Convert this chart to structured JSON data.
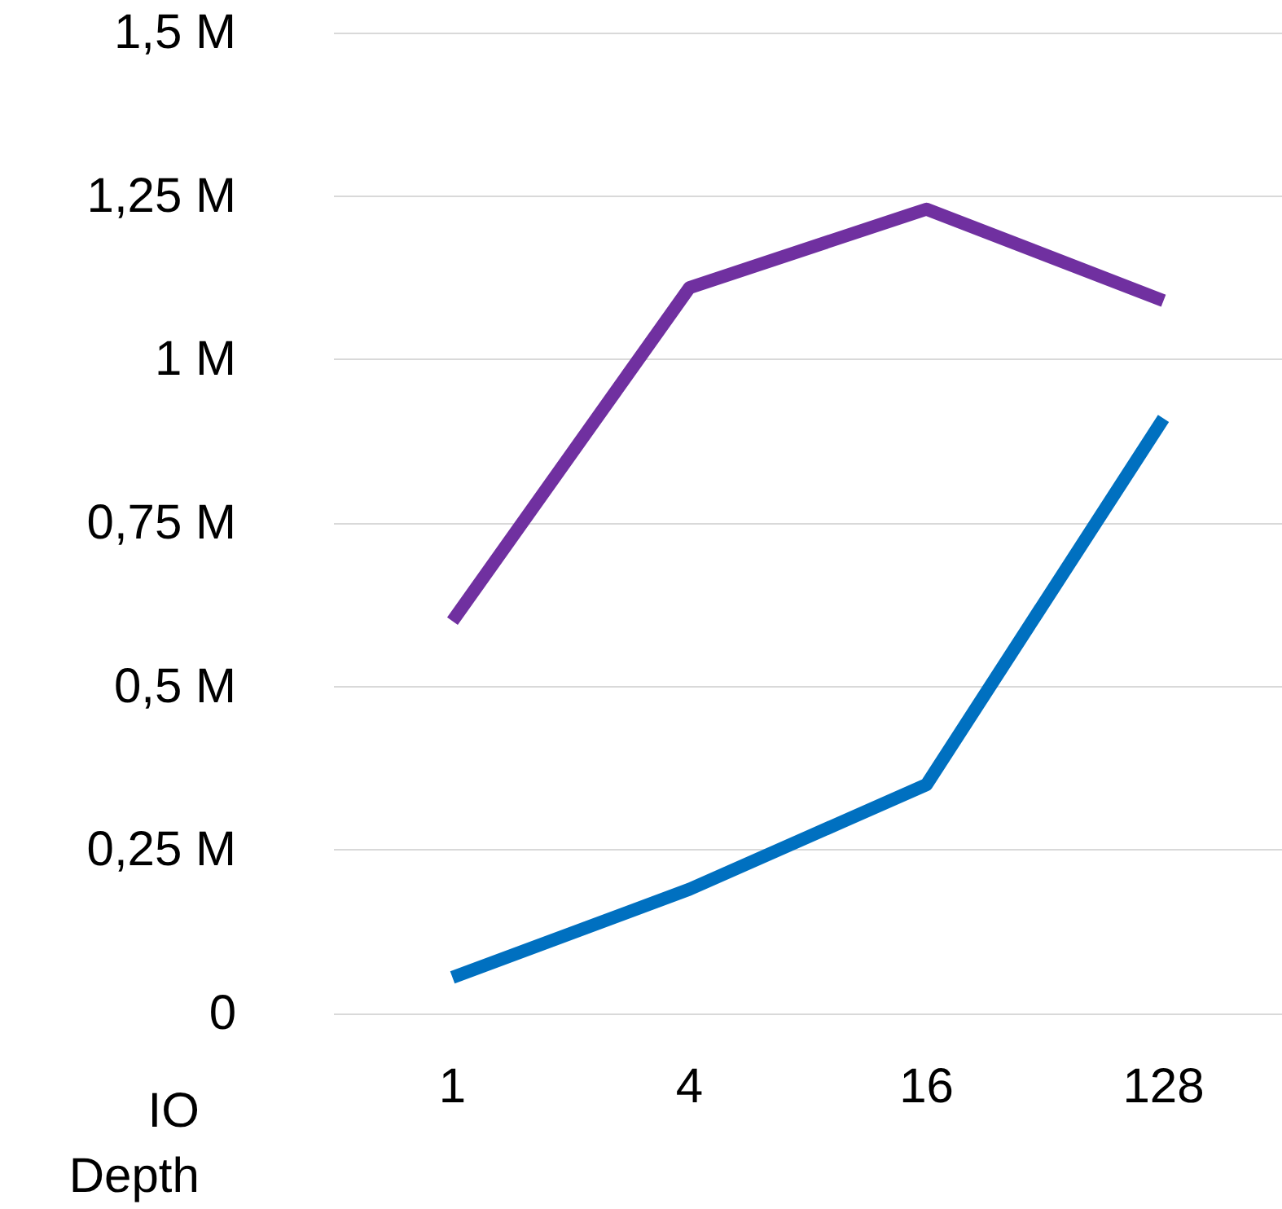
{
  "chart_data": {
    "type": "line",
    "xlabel": "IO\nDepth",
    "categories": [
      "1",
      "4",
      "16",
      "128"
    ],
    "series": [
      {
        "color": "#7030a0",
        "values": [
          0.6,
          1.11,
          1.23,
          1.09
        ]
      },
      {
        "color": "#0070c0",
        "values": [
          0.055,
          0.19,
          0.35,
          0.91
        ]
      }
    ],
    "ylim": [
      0,
      1.5
    ],
    "yticks": [
      {
        "value": 0,
        "label": "0"
      },
      {
        "value": 0.25,
        "label": "0,25 M"
      },
      {
        "value": 0.5,
        "label": "0,5 M"
      },
      {
        "value": 0.75,
        "label": "0,75 M"
      },
      {
        "value": 1,
        "label": "1 M"
      },
      {
        "value": 1.25,
        "label": "1,25 M"
      },
      {
        "value": 1.5,
        "label": "1,5 M"
      }
    ],
    "grid": "y",
    "marker": "none",
    "line_style": "solid"
  }
}
